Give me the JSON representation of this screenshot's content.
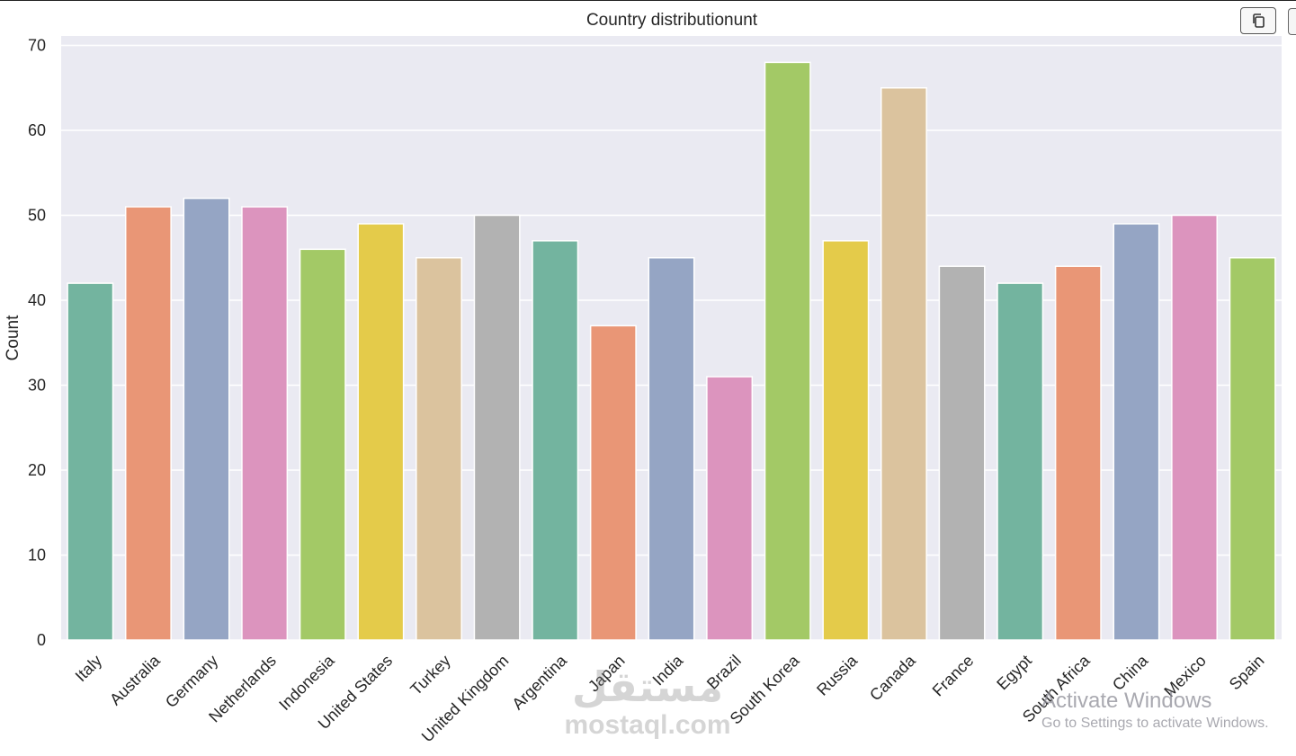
{
  "chart_data": {
    "type": "bar",
    "title": "Country distributionunt",
    "xlabel": "",
    "ylabel": "Count",
    "ylim": [
      0,
      70
    ],
    "yticks": [
      0,
      10,
      20,
      30,
      40,
      50,
      60,
      70
    ],
    "grid": true,
    "categories": [
      "Italy",
      "Australia",
      "Germany",
      "Netherlands",
      "Indonesia",
      "United States",
      "Turkey",
      "United Kingdom",
      "Argentina",
      "Japan",
      "India",
      "Brazil",
      "South Korea",
      "Russia",
      "Canada",
      "France",
      "Egypt",
      "South Africa",
      "China",
      "Mexico",
      "Spain"
    ],
    "values": [
      42,
      51,
      52,
      51,
      46,
      49,
      45,
      50,
      47,
      37,
      45,
      31,
      68,
      47,
      65,
      44,
      42,
      44,
      49,
      50,
      45
    ],
    "colors": [
      "#73b49f",
      "#e99676",
      "#95a5c4",
      "#dc94be",
      "#a3c966",
      "#e4cb4a",
      "#dbc39e",
      "#b2b2b2",
      "#73b49f",
      "#e99676",
      "#95a5c4",
      "#dc94be",
      "#a3c966",
      "#e4cb4a",
      "#dbc39e",
      "#b2b2b2",
      "#73b49f",
      "#e99676",
      "#95a5c4",
      "#dc94be",
      "#a3c966"
    ],
    "plot_background": "#eaeaf2"
  },
  "toolbar": {
    "copy_icon": "copy-icon"
  },
  "watermark": {
    "logo_name": "mostaql-logo",
    "text": "mostaql.com",
    "arabic": "مستقل"
  },
  "os_overlay": {
    "title": "Activate Windows",
    "subtitle": "Go to Settings to activate Windows."
  }
}
